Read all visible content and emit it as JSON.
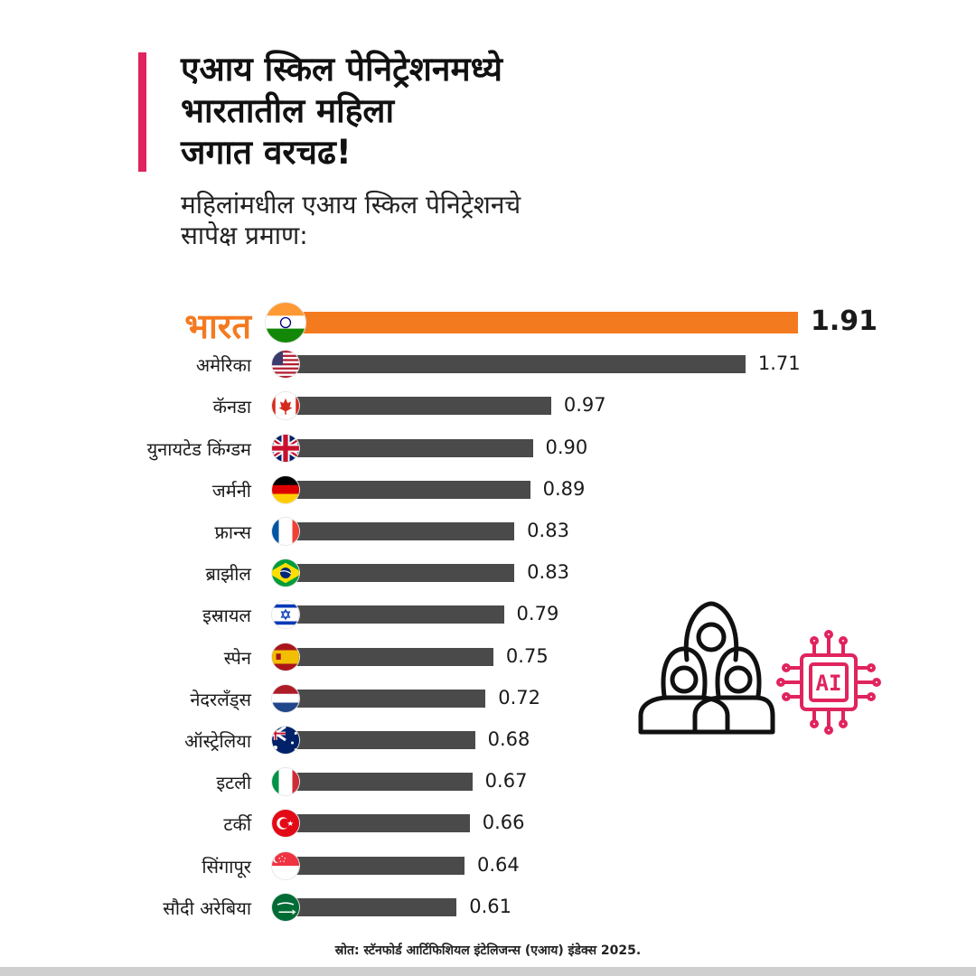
{
  "title_lines": [
    "एआय स्किल पेनिट्रेशनमध्ये",
    "भारतातील महिला",
    "जगात वरचढ!"
  ],
  "subtitle_lines": [
    "महिलांमधील एआय स्किल पेनिट्रेशनचे",
    "सापेक्ष  प्रमाण:"
  ],
  "colors": {
    "accent": "#e0245e",
    "highlight": "#f47a20",
    "bar": "#4a4a4a",
    "ai_icon": "#e0245e"
  },
  "illustration": {
    "ai_label": "AI",
    "people_icon": "women-group-icon",
    "chip_icon": "ai-chip-icon"
  },
  "source": "स्रोत: स्टॅनफोर्ड आर्टिफिशियल इंटेलिजन्स (एआय) इंडेक्स 2025.",
  "chart_data": {
    "type": "bar",
    "orientation": "horizontal",
    "title": "एआय स्किल पेनिट्रेशनमध्ये भारतातील महिला जगात वरचढ!",
    "subtitle": "महिलांमधील एआय स्किल पेनिट्रेशनचे सापेक्ष  प्रमाण:",
    "xlabel": "",
    "ylabel": "",
    "xlim": [
      0,
      1.91
    ],
    "categories": [
      "भारत",
      "अमेरिका",
      "कॅनडा",
      "युनायटेड किंग्डम",
      "जर्मनी",
      "फ्रान्स",
      "ब्राझील",
      "इस्रायल",
      "स्पेन",
      "नेदरलँड्स",
      "ऑस्ट्रेलिया",
      "इटली",
      "टर्की",
      "सिंगापूर",
      "सौदी अरेबिया"
    ],
    "values": [
      1.91,
      1.71,
      0.97,
      0.9,
      0.89,
      0.83,
      0.83,
      0.79,
      0.75,
      0.72,
      0.68,
      0.67,
      0.66,
      0.64,
      0.61
    ],
    "value_labels": [
      "1.91",
      "1.71",
      "0.97",
      "0.90",
      "0.89",
      "0.83",
      "0.83",
      "0.79",
      "0.75",
      "0.72",
      "0.68",
      "0.67",
      "0.66",
      "0.64",
      "0.61"
    ],
    "flags": [
      "india-flag-icon",
      "usa-flag-icon",
      "canada-flag-icon",
      "uk-flag-icon",
      "germany-flag-icon",
      "france-flag-icon",
      "brazil-flag-icon",
      "israel-flag-icon",
      "spain-flag-icon",
      "netherlands-flag-icon",
      "australia-flag-icon",
      "italy-flag-icon",
      "turkey-flag-icon",
      "singapore-flag-icon",
      "saudi-arabia-flag-icon"
    ],
    "highlight_index": 0,
    "grid": false,
    "legend": "none"
  }
}
